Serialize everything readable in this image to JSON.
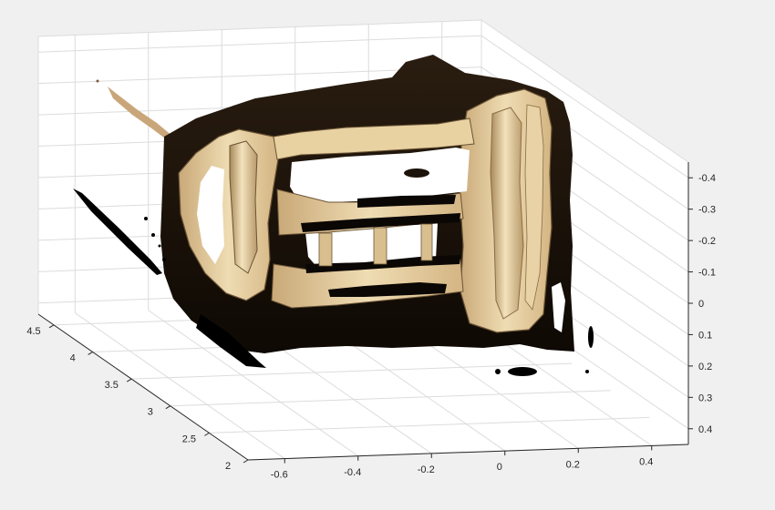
{
  "chart_data": {
    "type": "scatter",
    "subtype": "3d point cloud",
    "title": "",
    "xlabel": "",
    "ylabel": "",
    "zlabel": "",
    "x_axis": {
      "range": [
        -0.7,
        0.5
      ],
      "ticks": [
        "-0.6",
        "-0.4",
        "-0.2",
        "0",
        "0.2",
        "0.4"
      ]
    },
    "y_axis": {
      "range": [
        2,
        4.7
      ],
      "ticks": [
        "2",
        "2.5",
        "3",
        "3.5",
        "4",
        "4.5"
      ]
    },
    "z_axis": {
      "range": [
        -0.45,
        0.45
      ],
      "reversed": true,
      "ticks": [
        "-0.4",
        "-0.3",
        "-0.2",
        "-0.1",
        "0",
        "0.1",
        "0.2",
        "0.3",
        "0.4"
      ]
    },
    "grid": true,
    "legend": "none",
    "colors": {
      "stone": "#d8bd8a",
      "stone_light": "#eedcb4",
      "shadow": "#1a120a",
      "edge": "#6b5436",
      "background": "#f0f0f0",
      "pane": "#ffffff"
    },
    "subject": "RGB point cloud of a building facade with a colonnade"
  }
}
